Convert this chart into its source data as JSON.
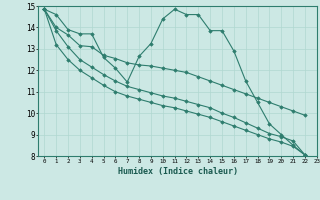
{
  "xlabel": "Humidex (Indice chaleur)",
  "ylabel": "",
  "bg_color": "#cce8e4",
  "line_color": "#2e7d6e",
  "grid_color": "#b0d8d0",
  "xlim": [
    -0.5,
    23
  ],
  "ylim": [
    8,
    15
  ],
  "xticks": [
    0,
    1,
    2,
    3,
    4,
    5,
    6,
    7,
    8,
    9,
    10,
    11,
    12,
    13,
    14,
    15,
    16,
    17,
    18,
    19,
    20,
    21,
    22,
    23
  ],
  "yticks": [
    8,
    9,
    10,
    11,
    12,
    13,
    14,
    15
  ],
  "series": [
    [
      14.85,
      14.6,
      13.9,
      13.7,
      13.7,
      12.6,
      12.1,
      11.45,
      12.65,
      13.25,
      14.4,
      14.85,
      14.6,
      14.6,
      13.85,
      13.85,
      12.9,
      11.5,
      10.5,
      9.5,
      9.0,
      8.5,
      8.05
    ],
    [
      14.85,
      14.0,
      13.65,
      13.15,
      13.1,
      12.7,
      12.55,
      12.35,
      12.25,
      12.2,
      12.1,
      12.0,
      11.9,
      11.7,
      11.5,
      11.3,
      11.1,
      10.9,
      10.7,
      10.5,
      10.3,
      10.1,
      9.9
    ],
    [
      14.85,
      13.85,
      13.1,
      12.5,
      12.15,
      11.8,
      11.5,
      11.25,
      11.1,
      10.95,
      10.8,
      10.7,
      10.55,
      10.4,
      10.25,
      10.0,
      9.8,
      9.55,
      9.3,
      9.05,
      8.9,
      8.7,
      8.05
    ],
    [
      14.85,
      13.2,
      12.5,
      12.0,
      11.65,
      11.3,
      11.0,
      10.8,
      10.65,
      10.5,
      10.35,
      10.25,
      10.1,
      9.95,
      9.8,
      9.6,
      9.4,
      9.2,
      9.0,
      8.8,
      8.65,
      8.45,
      8.05
    ]
  ]
}
